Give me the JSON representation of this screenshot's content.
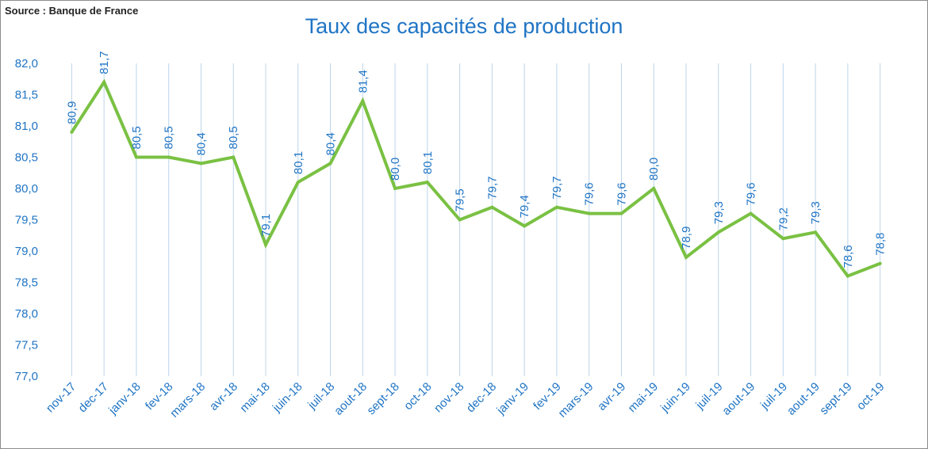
{
  "source_note": "Source : Banque de France",
  "chart_data": {
    "type": "line",
    "title": "Taux des capacités de production",
    "xlabel": "",
    "ylabel": "",
    "categories": [
      "nov-17",
      "dec-17",
      "janv-18",
      "fev-18",
      "mars-18",
      "avr-18",
      "mai-18",
      "juin-18",
      "juil-18",
      "aout-18",
      "sept-18",
      "oct-18",
      "nov-18",
      "dec-18",
      "janv-19",
      "fev-19",
      "mars-19",
      "avr-19",
      "mai-19",
      "juin-19",
      "juil-19",
      "aout-19",
      "juil-19",
      "aout-19",
      "sept-19",
      "oct-19"
    ],
    "series": [
      {
        "values": [
          80.9,
          81.7,
          80.5,
          80.5,
          80.4,
          80.5,
          79.1,
          80.1,
          80.4,
          81.4,
          80.0,
          80.1,
          79.5,
          79.7,
          79.4,
          79.7,
          79.6,
          79.6,
          80.0,
          78.9,
          79.3,
          79.6,
          79.2,
          79.3,
          78.6,
          78.8
        ],
        "data_labels": [
          "80,9",
          "81,7",
          "80,5",
          "80,5",
          "80,4",
          "80,5",
          "79,1",
          "80,1",
          "80,4",
          "81,4",
          "80,0",
          "80,1",
          "79,5",
          "79,7",
          "79,4",
          "79,7",
          "79,6",
          "79,6",
          "80,0",
          "78,9",
          "79,3",
          "79,6",
          "79,2",
          "79,3",
          "78,6",
          "78,8"
        ]
      }
    ],
    "ylim": [
      77.0,
      82.0
    ],
    "yticks": [
      77.0,
      77.5,
      78.0,
      78.5,
      79.0,
      79.5,
      80.0,
      80.5,
      81.0,
      81.5,
      82.0
    ],
    "ytick_labels": [
      "77,0",
      "77,5",
      "78,0",
      "78,5",
      "79,0",
      "79,5",
      "80,0",
      "80,5",
      "81,0",
      "81,5",
      "82,0"
    ],
    "grid": "vertical",
    "legend": "none",
    "colors": {
      "line": "#7ac143",
      "text": "#1f74c4",
      "grid": "#bcd5ea"
    }
  }
}
